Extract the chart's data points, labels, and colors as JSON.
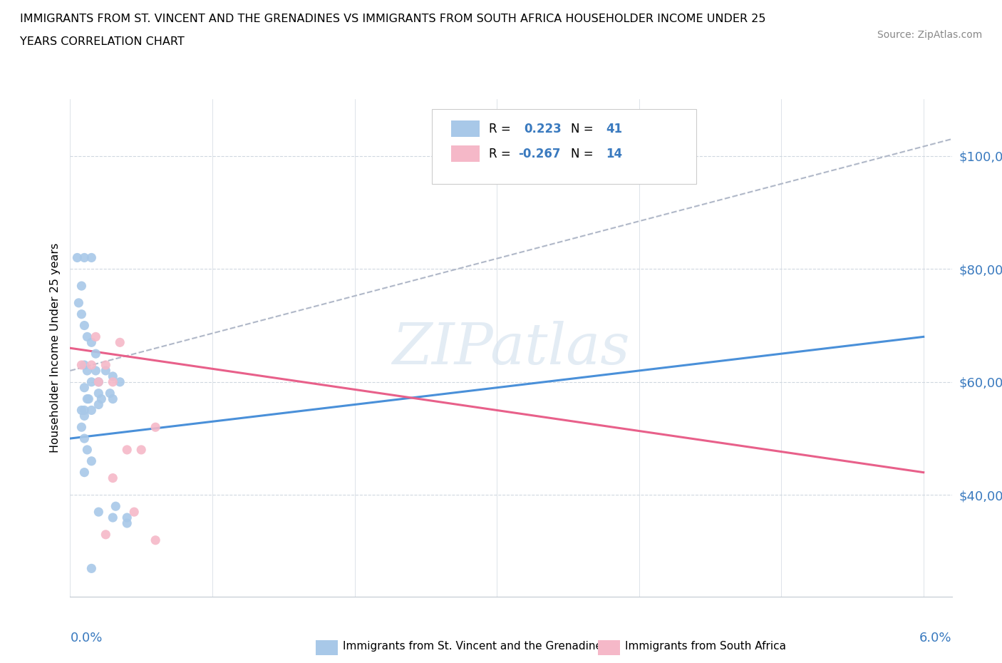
{
  "title_line1": "IMMIGRANTS FROM ST. VINCENT AND THE GRENADINES VS IMMIGRANTS FROM SOUTH AFRICA HOUSEHOLDER INCOME UNDER 25",
  "title_line2": "YEARS CORRELATION CHART",
  "source": "Source: ZipAtlas.com",
  "ylabel": "Householder Income Under 25 years",
  "watermark_text": "ZIPatlas",
  "legend1_r": "R = ",
  "legend1_r_val": "0.223",
  "legend1_n": "  N = ",
  "legend1_n_val": "41",
  "legend2_r": "R = ",
  "legend2_r_val": "-0.267",
  "legend2_n": "  N = ",
  "legend2_n_val": "14",
  "blue_color": "#a8c8e8",
  "pink_color": "#f5b8c8",
  "blue_line_color": "#4a90d9",
  "pink_line_color": "#e8608a",
  "dashed_line_color": "#b0b8c8",
  "ytick_labels": [
    "$40,000",
    "$60,000",
    "$80,000",
    "$100,000"
  ],
  "ytick_values": [
    40000,
    60000,
    80000,
    100000
  ],
  "ylim": [
    22000,
    110000
  ],
  "xlim": [
    0.0,
    0.062
  ],
  "blue_scatter_x": [
    0.0005,
    0.001,
    0.0015,
    0.0008,
    0.0006,
    0.0008,
    0.001,
    0.0012,
    0.0015,
    0.0018,
    0.001,
    0.0012,
    0.0015,
    0.001,
    0.0013,
    0.0008,
    0.001,
    0.0015,
    0.0012,
    0.001,
    0.0008,
    0.001,
    0.0012,
    0.0015,
    0.001,
    0.0018,
    0.002,
    0.002,
    0.0022,
    0.002,
    0.0025,
    0.003,
    0.0035,
    0.0028,
    0.003,
    0.0032,
    0.002,
    0.003,
    0.004,
    0.004,
    0.0015
  ],
  "blue_scatter_y": [
    82000,
    82000,
    82000,
    77000,
    74000,
    72000,
    70000,
    68000,
    67000,
    65000,
    63000,
    62000,
    60000,
    59000,
    57000,
    55000,
    55000,
    55000,
    57000,
    54000,
    52000,
    50000,
    48000,
    46000,
    44000,
    62000,
    60000,
    58000,
    57000,
    56000,
    62000,
    61000,
    60000,
    58000,
    57000,
    38000,
    37000,
    36000,
    36000,
    35000,
    27000
  ],
  "pink_scatter_x": [
    0.0008,
    0.0015,
    0.0018,
    0.0025,
    0.002,
    0.003,
    0.0035,
    0.004,
    0.0045,
    0.006,
    0.003,
    0.005,
    0.0025,
    0.006
  ],
  "pink_scatter_y": [
    63000,
    63000,
    68000,
    63000,
    60000,
    60000,
    67000,
    48000,
    37000,
    52000,
    43000,
    48000,
    33000,
    32000
  ],
  "blue_trend": [
    0.0,
    0.003,
    0.06
  ],
  "blue_trend_y": [
    50000,
    56000,
    68000
  ],
  "pink_trend": [
    0.0,
    0.06
  ],
  "pink_trend_y": [
    66000,
    44000
  ],
  "dashed_trend": [
    0.0,
    0.062
  ],
  "dashed_trend_y": [
    62000,
    103000
  ]
}
